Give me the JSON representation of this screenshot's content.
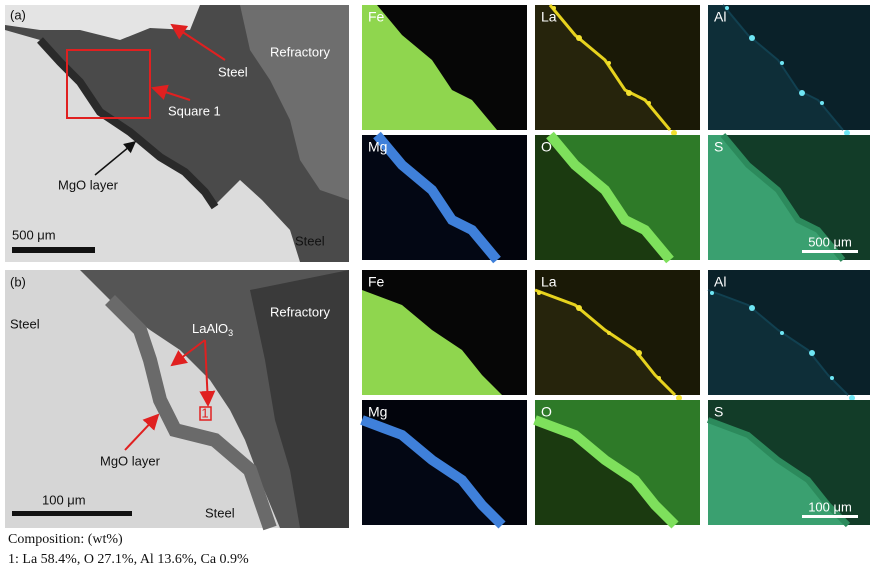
{
  "panels": [
    {
      "label": "(a)",
      "sem": {
        "steel_top": "Steel",
        "refractory": "Refractory",
        "square": "Square 1",
        "mgo_layer": "MgO layer",
        "steel_bottom": "Steel",
        "scale_bar": "500 μm"
      },
      "maps": [
        "Fe",
        "La",
        "Al",
        "Mg",
        "O",
        "S"
      ],
      "map_scale_bar": "500 μm"
    },
    {
      "label": "(b)",
      "sem": {
        "steel_left": "Steel",
        "refractory": "Refractory",
        "phase": {
          "text": "LaAlO",
          "subscript": "3"
        },
        "point": "1",
        "mgo_layer": "MgO layer",
        "steel_bottom": "Steel",
        "scale_bar": "100 μm"
      },
      "maps": [
        "Fe",
        "La",
        "Al",
        "Mg",
        "O",
        "S"
      ],
      "map_scale_bar": "100 μm"
    }
  ],
  "caption": {
    "heading": "Composition: (wt%)",
    "line": "1: La 58.4%, O 27.1%, Al 13.6%, Ca 0.9%"
  }
}
